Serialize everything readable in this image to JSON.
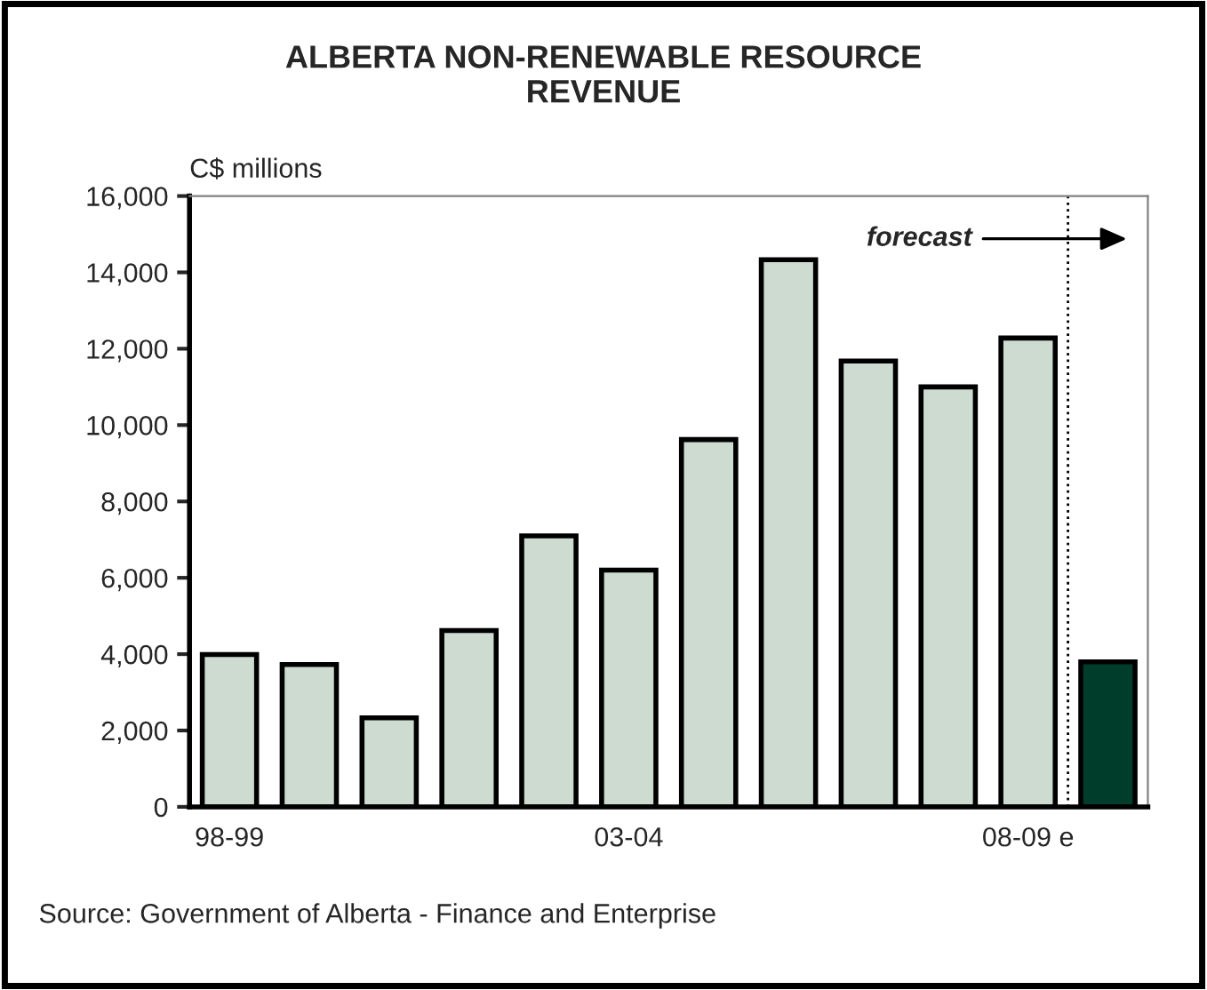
{
  "chart_data": {
    "type": "bar",
    "title": "ALBERTA NON-RENEWABLE RESOURCE\nREVENUE",
    "ylabel": "C$ millions",
    "categories": [
      "98-99",
      null,
      null,
      null,
      null,
      "03-04",
      null,
      null,
      null,
      null,
      "08-09 e",
      null
    ],
    "values": [
      3990,
      3730,
      2330,
      4620,
      7100,
      6200,
      9620,
      14330,
      11680,
      11000,
      12280,
      3800
    ],
    "colors": [
      "#cddbd1",
      "#cddbd1",
      "#cddbd1",
      "#cddbd1",
      "#cddbd1",
      "#cddbd1",
      "#cddbd1",
      "#cddbd1",
      "#cddbd1",
      "#cddbd1",
      "#cddbd1",
      "#003d2b"
    ],
    "ylim": [
      0,
      16000
    ],
    "yticks": [
      {
        "value": 0,
        "label": "0"
      },
      {
        "value": 2000,
        "label": "2,000"
      },
      {
        "value": 4000,
        "label": "4,000"
      },
      {
        "value": 6000,
        "label": "6,000"
      },
      {
        "value": 8000,
        "label": "8,000"
      },
      {
        "value": 10000,
        "label": "10,000"
      },
      {
        "value": 12000,
        "label": "12,000"
      },
      {
        "value": 14000,
        "label": "14,000"
      },
      {
        "value": 16000,
        "label": "16,000"
      }
    ],
    "annotations": [
      "forecast",
      "Source: Government of Alberta - Finance and Enterprise"
    ],
    "grid": false,
    "legend": false
  }
}
